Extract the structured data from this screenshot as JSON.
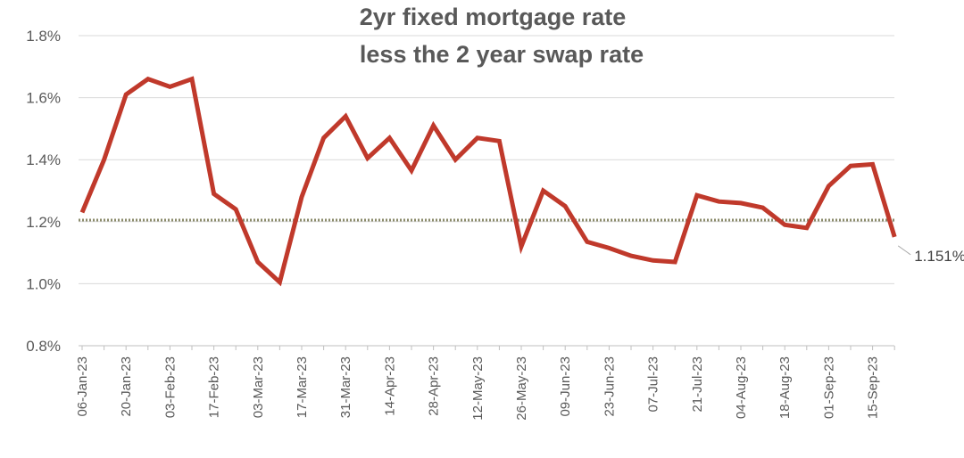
{
  "chart_data": {
    "type": "line",
    "title_lines": [
      "2yr fixed mortgage rate",
      "less the 2 year swap rate"
    ],
    "xlabel": "",
    "ylabel": "",
    "ylim": [
      0.8,
      1.8
    ],
    "y_ticks": [
      "1.8%",
      "1.6%",
      "1.4%",
      "1.2%",
      "1.0%",
      "0.8%"
    ],
    "y_tick_values": [
      1.8,
      1.6,
      1.4,
      1.2,
      1.0,
      0.8
    ],
    "x_tick_labels": [
      "06-Jan-23",
      "20-Jan-23",
      "03-Feb-23",
      "17-Feb-23",
      "03-Mar-23",
      "17-Mar-23",
      "31-Mar-23",
      "14-Apr-23",
      "28-Apr-23",
      "12-May-23",
      "26-May-23",
      "09-Jun-23",
      "23-Jun-23",
      "07-Jul-23",
      "21-Jul-23",
      "04-Aug-23",
      "18-Aug-23",
      "01-Sep-23",
      "15-Sep-23"
    ],
    "grid": true,
    "series": [
      {
        "color": "#c0392b",
        "values": [
          1.23,
          1.4,
          1.61,
          1.66,
          1.635,
          1.66,
          1.29,
          1.24,
          1.07,
          1.005,
          1.28,
          1.47,
          1.54,
          1.405,
          1.47,
          1.365,
          1.51,
          1.4,
          1.47,
          1.46,
          1.12,
          1.3,
          1.25,
          1.135,
          1.115,
          1.09,
          1.075,
          1.07,
          1.285,
          1.265,
          1.26,
          1.245,
          1.19,
          1.18,
          1.315,
          1.38,
          1.385,
          1.151
        ]
      }
    ],
    "reference_line": {
      "value": 1.205,
      "color": "#8a8a6a"
    },
    "annotation": "1.151%"
  }
}
